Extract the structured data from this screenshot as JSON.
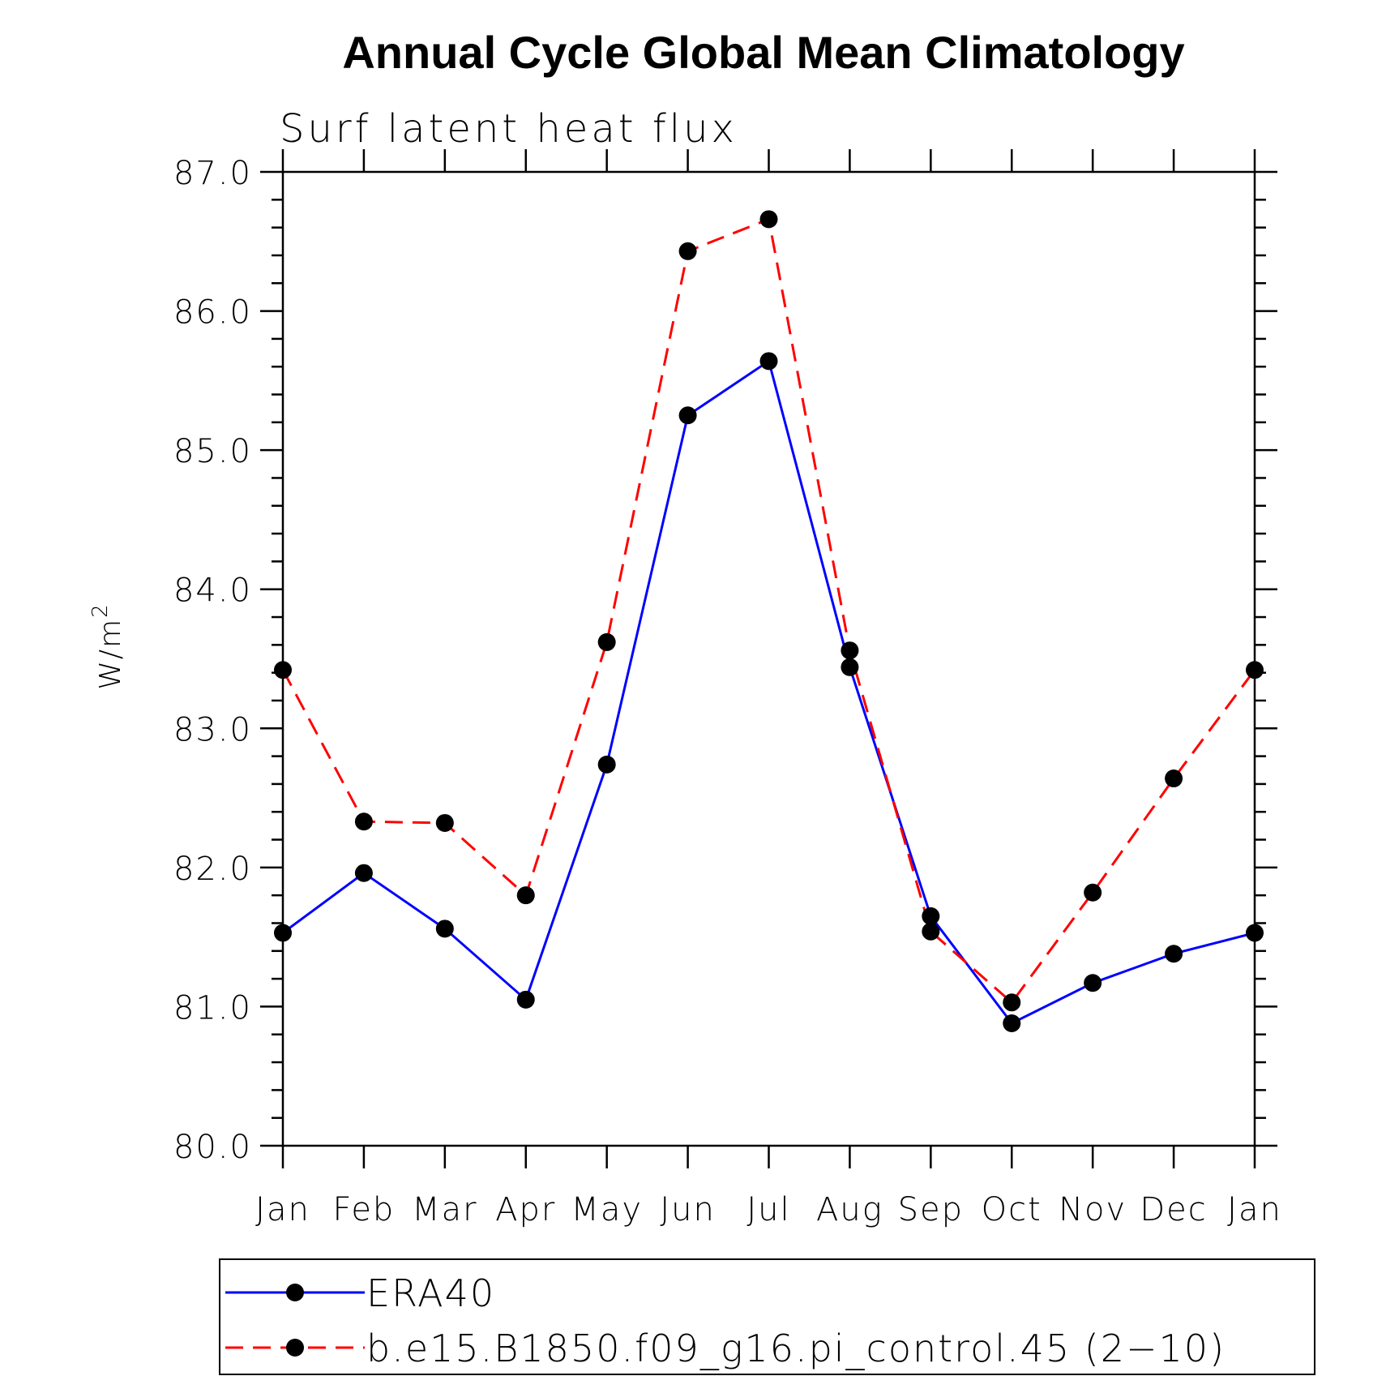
{
  "chart_data": {
    "type": "line",
    "title": "Annual Cycle Global Mean Climatology",
    "subtitle": "Surf latent heat flux",
    "ylabel_base": "W/m",
    "ylabel_sup": "2",
    "xlabel": "",
    "categories": [
      "Jan",
      "Feb",
      "Mar",
      "Apr",
      "May",
      "Jun",
      "Jul",
      "Aug",
      "Sep",
      "Oct",
      "Nov",
      "Dec",
      "Jan"
    ],
    "ylim": [
      80.0,
      87.0
    ],
    "yticks": [
      "80.0",
      "81.0",
      "82.0",
      "83.0",
      "84.0",
      "85.0",
      "86.0",
      "87.0"
    ],
    "yminor_step": 0.2,
    "grid": false,
    "legend_position": "bottom",
    "series": [
      {
        "name": "ERA40",
        "color": "#0000ff",
        "dash": "solid",
        "marker": "filled-circle",
        "values": [
          81.53,
          81.96,
          81.56,
          81.05,
          82.74,
          85.25,
          85.64,
          83.44,
          81.65,
          80.88,
          81.17,
          81.38,
          81.53
        ]
      },
      {
        "name": "b.e15.B1850.f09_g16.pi_control.45 (2−10)",
        "color": "#ff0000",
        "dash": "dashed",
        "marker": "filled-circle",
        "values": [
          83.42,
          82.33,
          82.32,
          81.8,
          83.62,
          86.43,
          86.66,
          83.56,
          81.54,
          81.03,
          81.82,
          82.64,
          83.42
        ]
      }
    ]
  }
}
